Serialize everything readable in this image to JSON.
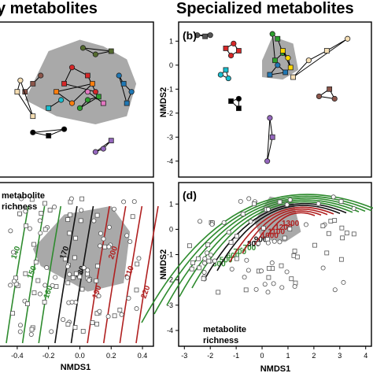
{
  "titles": {
    "left": "y metabolites",
    "right": "Specialized metabolites"
  },
  "colors": {
    "hull": "#9a9a9a",
    "frame": "#000000",
    "point_edge": "#222222",
    "open_marker": "#ffffff",
    "contour_low": "#2e8b2e",
    "contour_mid": "#111111",
    "contour_high": "#b02020"
  },
  "chart_data": [
    {
      "panel": "a",
      "label": "",
      "type": "scatter",
      "subtype": "nmds-ordination-with-group-hulls",
      "xlabel": "",
      "ylabel": "",
      "hull": [
        [
          -0.35,
          0.0
        ],
        [
          -0.2,
          0.3
        ],
        [
          0.0,
          0.37
        ],
        [
          0.15,
          0.33
        ],
        [
          0.3,
          0.25
        ],
        [
          0.36,
          0.1
        ],
        [
          0.3,
          -0.1
        ],
        [
          0.1,
          -0.15
        ],
        [
          -0.15,
          -0.1
        ],
        [
          -0.35,
          0.0
        ]
      ],
      "series": [
        {
          "color": "#d62728",
          "points": [
            [
              -0.05,
              0.2
            ],
            [
              0.05,
              0.15
            ],
            [
              0.1,
              0.05
            ],
            [
              -0.1,
              0.1
            ]
          ]
        },
        {
          "color": "#1f77b4",
          "points": [
            [
              0.28,
              0.1
            ],
            [
              0.33,
              0.05
            ],
            [
              0.3,
              -0.02
            ],
            [
              0.25,
              0.15
            ]
          ]
        },
        {
          "color": "#2ca02c",
          "points": [
            [
              0.05,
              0.0
            ],
            [
              0.12,
              0.02
            ],
            [
              0.0,
              -0.05
            ]
          ]
        },
        {
          "color": "#ff7f0e",
          "points": [
            [
              -0.15,
              0.05
            ],
            [
              -0.05,
              -0.02
            ],
            [
              0.08,
              0.1
            ]
          ]
        },
        {
          "color": "#9467bd",
          "points": [
            [
              0.15,
              -0.3
            ],
            [
              0.2,
              -0.25
            ],
            [
              0.1,
              -0.32
            ]
          ]
        },
        {
          "color": "#8c564b",
          "points": [
            [
              -0.3,
              0.1
            ],
            [
              -0.25,
              0.15
            ],
            [
              -0.35,
              0.05
            ]
          ]
        },
        {
          "color": "#e377c2",
          "points": [
            [
              0.05,
              0.05
            ],
            [
              0.15,
              -0.02
            ]
          ]
        },
        {
          "color": "#17becf",
          "points": [
            [
              -0.2,
              -0.05
            ],
            [
              -0.12,
              0.0
            ]
          ]
        },
        {
          "color": "#000000",
          "points": [
            [
              -0.3,
              -0.2
            ],
            [
              -0.2,
              -0.22
            ],
            [
              -0.1,
              -0.18
            ]
          ]
        },
        {
          "color": "#f5deb3",
          "points": [
            [
              -0.4,
              0.05
            ],
            [
              -0.38,
              0.12
            ],
            [
              -0.3,
              -0.1
            ]
          ]
        },
        {
          "color": "#556b2f",
          "points": [
            [
              0.1,
              0.28
            ],
            [
              0.2,
              0.3
            ],
            [
              0.02,
              0.32
            ]
          ]
        }
      ]
    },
    {
      "panel": "b",
      "label": "(b)",
      "type": "scatter",
      "subtype": "nmds-ordination-with-group-hulls",
      "xlabel": "",
      "ylabel": "NMDS2",
      "ylim": [
        -4.5,
        1.6
      ],
      "yticks": [
        1,
        0,
        -1,
        -2,
        -3,
        -4
      ],
      "hull": [
        [
          0.0,
          0.2
        ],
        [
          0.4,
          1.2
        ],
        [
          1.2,
          0.9
        ],
        [
          1.4,
          -0.2
        ],
        [
          0.8,
          -0.6
        ],
        [
          0.0,
          -0.5
        ],
        [
          0.0,
          0.2
        ]
      ],
      "series": [
        {
          "color": "#555555",
          "points": [
            [
              -2.5,
              1.25
            ],
            [
              -2.2,
              1.2
            ],
            [
              -2.0,
              1.25
            ]
          ]
        },
        {
          "color": "#d62728",
          "points": [
            [
              -1.4,
              0.7
            ],
            [
              -1.1,
              0.9
            ],
            [
              -0.9,
              0.6
            ],
            [
              -1.2,
              0.4
            ]
          ]
        },
        {
          "color": "#2ca02c",
          "points": [
            [
              0.4,
              1.3
            ],
            [
              0.6,
              1.1
            ],
            [
              0.8,
              0.5
            ],
            [
              0.5,
              0.2
            ]
          ]
        },
        {
          "color": "#1f77b4",
          "points": [
            [
              0.3,
              -0.4
            ],
            [
              0.6,
              0.0
            ],
            [
              0.9,
              -0.3
            ]
          ]
        },
        {
          "color": "#9467bd",
          "points": [
            [
              0.3,
              -2.2
            ],
            [
              0.4,
              -3.0
            ],
            [
              0.2,
              -4.0
            ]
          ]
        },
        {
          "color": "#f5deb3",
          "points": [
            [
              1.2,
              -0.5
            ],
            [
              1.8,
              0.2
            ],
            [
              2.5,
              0.6
            ],
            [
              3.3,
              1.1
            ]
          ]
        },
        {
          "color": "#8c564b",
          "points": [
            [
              2.2,
              -1.3
            ],
            [
              2.6,
              -1.0
            ],
            [
              2.8,
              -1.4
            ]
          ]
        },
        {
          "color": "#000000",
          "points": [
            [
              -1.2,
              -1.5
            ],
            [
              -0.9,
              -1.4
            ],
            [
              -0.9,
              -1.8
            ]
          ]
        },
        {
          "color": "#17becf",
          "points": [
            [
              -1.6,
              -0.4
            ],
            [
              -1.4,
              -0.2
            ],
            [
              -1.3,
              -0.55
            ]
          ]
        },
        {
          "color": "#ffd700",
          "points": [
            [
              0.8,
              0.6
            ],
            [
              1.0,
              0.3
            ],
            [
              1.1,
              -0.1
            ]
          ]
        }
      ]
    },
    {
      "panel": "c",
      "label": "",
      "type": "scatter",
      "subtype": "nmds-ordination-with-contour-surface",
      "annotation": [
        "metabolite",
        "richness"
      ],
      "xlabel": "NMDS1",
      "ylabel": "",
      "xlim": [
        -0.5,
        0.45
      ],
      "xticks": [
        -0.4,
        -0.2,
        0.0,
        0.2,
        0.4
      ],
      "xtick_labels": [
        "-0.4",
        "-0.2",
        "0.0",
        "0.2",
        "0.4"
      ],
      "contour_levels": [
        {
          "label": "140",
          "group": "low"
        },
        {
          "label": "150",
          "group": "low"
        },
        {
          "label": "160",
          "group": "low"
        },
        {
          "label": "170",
          "group": "mid"
        },
        {
          "label": "180",
          "group": "mid"
        },
        {
          "label": "190",
          "group": "high"
        },
        {
          "label": "200",
          "group": "high"
        },
        {
          "label": "210",
          "group": "high"
        },
        {
          "label": "220",
          "group": "high"
        }
      ]
    },
    {
      "panel": "d",
      "label": "(d)",
      "type": "scatter",
      "subtype": "nmds-ordination-with-contour-surface",
      "annotation": [
        "metabolite",
        "richness"
      ],
      "xlabel": "NMDS1",
      "ylabel": "NMDS2",
      "xlim": [
        -3.1,
        4.1
      ],
      "ylim": [
        -4.5,
        1.6
      ],
      "xticks": [
        -3,
        -2,
        -1,
        0,
        1,
        2,
        3,
        4
      ],
      "yticks": [
        1,
        0,
        -1,
        -2,
        -3,
        -4
      ],
      "contour_levels": [
        {
          "label": "300",
          "group": "low"
        },
        {
          "label": "500",
          "group": "low"
        },
        {
          "label": "600",
          "group": "low"
        },
        {
          "label": "700",
          "group": "low"
        },
        {
          "label": "-700",
          "group": "low"
        },
        {
          "label": "800",
          "group": "mid"
        },
        {
          "label": "900",
          "group": "mid"
        },
        {
          "label": "1000",
          "group": "high"
        },
        {
          "label": "1100",
          "group": "high"
        },
        {
          "label": "1200",
          "group": "high"
        },
        {
          "label": "1300",
          "group": "high"
        }
      ]
    }
  ]
}
